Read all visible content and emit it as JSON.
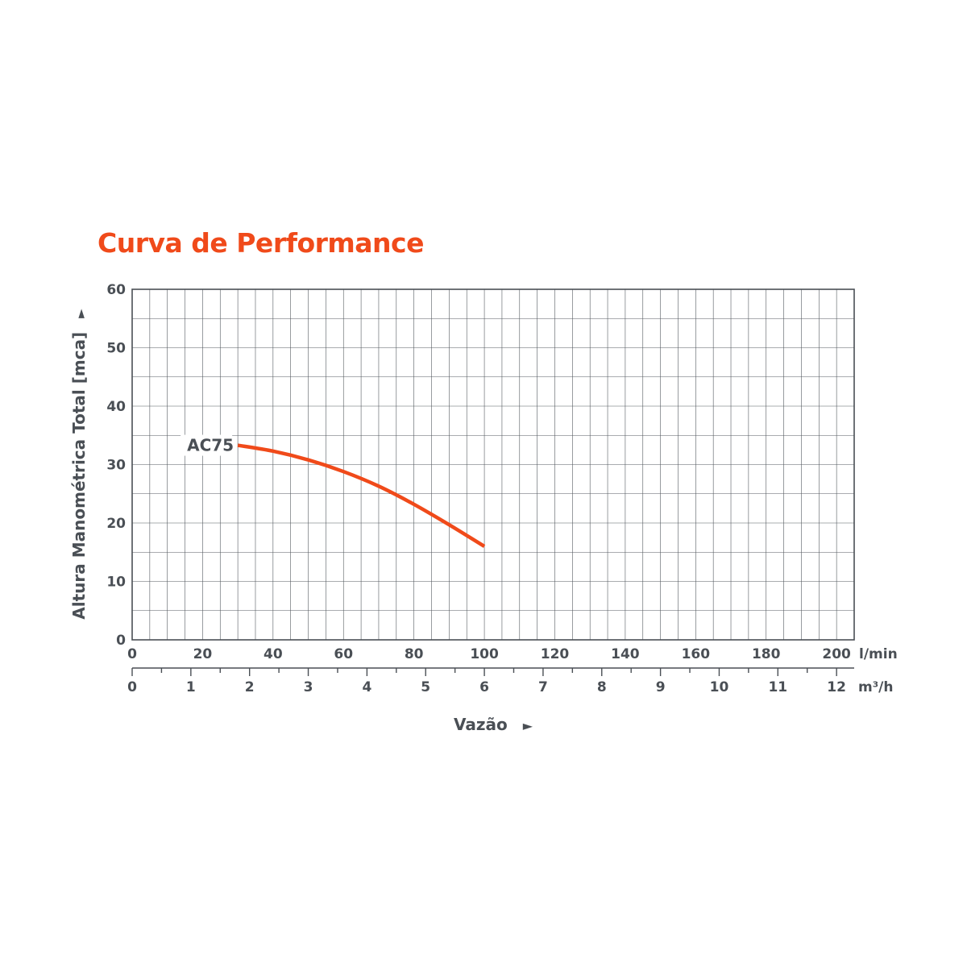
{
  "chart_data": {
    "type": "line",
    "title": "Curva de Performance",
    "xlabel": "Vazão",
    "xlabel_arrow": "►",
    "ylabel": "Altura Manométrica Total [mca]",
    "ylabel_arrow": "►",
    "x_unit": "l/min",
    "x2_unit": "m³/h",
    "xlim": [
      0,
      205
    ],
    "ylim": [
      0,
      60
    ],
    "x_ticks": [
      "0",
      "20",
      "40",
      "60",
      "80",
      "100",
      "120",
      "140",
      "160",
      "180",
      "200"
    ],
    "x2_ticks": [
      "0",
      "1",
      "2",
      "3",
      "4",
      "5",
      "6",
      "7",
      "8",
      "9",
      "10",
      "11",
      "12"
    ],
    "y_ticks": [
      "0",
      "10",
      "20",
      "30",
      "40",
      "50",
      "60"
    ],
    "grid": true,
    "line_color": "#f04a1a",
    "series": [
      {
        "name": "AC75",
        "x": [
          30,
          40,
          50,
          60,
          70,
          80,
          90,
          100
        ],
        "y": [
          33.3,
          32.3,
          30.8,
          28.8,
          26.3,
          23.2,
          19.7,
          16.0
        ]
      }
    ]
  }
}
